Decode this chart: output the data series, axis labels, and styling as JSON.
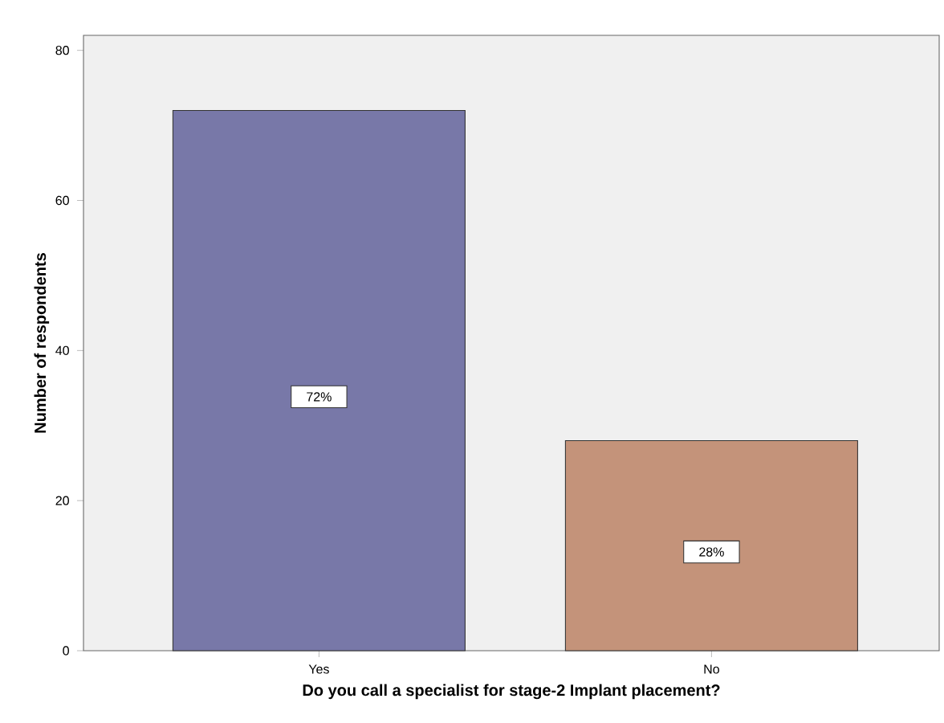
{
  "chart_data": {
    "type": "bar",
    "xlabel": "Do you call a specialist for stage-2 Implant placement?",
    "ylabel": "Number of respondents",
    "categories": [
      "Yes",
      "No"
    ],
    "values": [
      72,
      28
    ],
    "colors": [
      "#7878a8",
      "#c4937a"
    ],
    "value_labels": [
      "72%",
      "28%"
    ],
    "ylim": [
      0,
      82
    ],
    "yticks": [
      0,
      20,
      40,
      60,
      80
    ],
    "grid": false
  }
}
